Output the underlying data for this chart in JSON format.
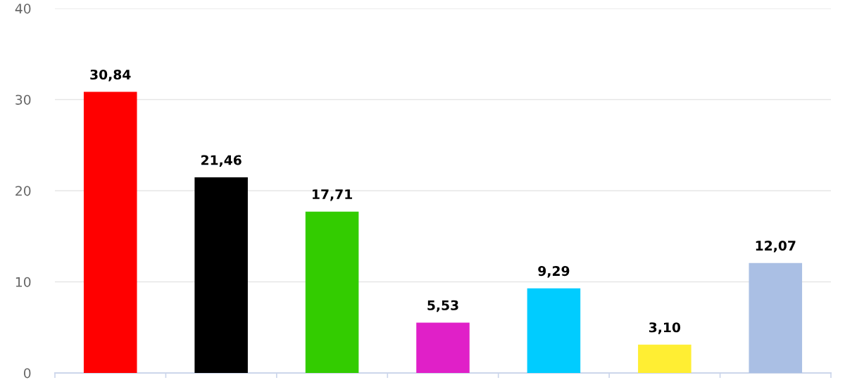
{
  "chart_data": {
    "type": "bar",
    "categories": [
      null,
      null,
      null,
      null,
      null,
      null,
      null
    ],
    "values": [
      30.84,
      21.46,
      17.71,
      5.53,
      9.29,
      3.1,
      12.07
    ],
    "colors": [
      "#ff0000",
      "#000000",
      "#33cc00",
      "#e020c8",
      "#00ccff",
      "#ffee33",
      "#aabfe4"
    ],
    "value_labels": [
      "30,84",
      "21,46",
      "17,71",
      "5,53",
      "9,29",
      "3,10",
      "12,07"
    ],
    "ylim": [
      0,
      40
    ],
    "yticks": [
      0,
      10,
      20,
      30,
      40
    ],
    "grid": "y",
    "legend": false
  }
}
